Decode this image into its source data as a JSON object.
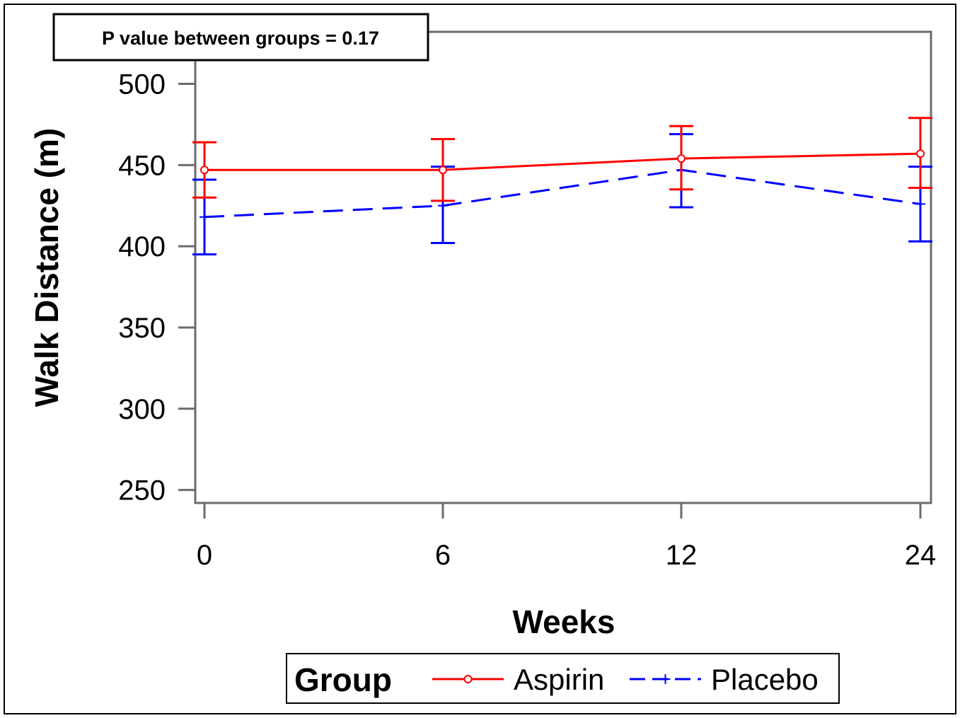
{
  "chart_data": {
    "type": "line",
    "x_type": "categorical",
    "categories": [
      "0",
      "6",
      "12",
      "24"
    ],
    "xlabel": "Weeks",
    "ylabel": "Walk Distance (m)",
    "ylim": [
      242,
      532
    ],
    "y_ticks": [
      "250",
      "300",
      "350",
      "400",
      "450",
      "500"
    ],
    "grid": false,
    "legend": {
      "title": "Group",
      "placement": "bottom-center"
    },
    "annotation": "P value between groups = 0.17",
    "series": [
      {
        "name": "Aspirin",
        "color": "#ff0000",
        "line_style": "solid",
        "marker": "circle",
        "values": [
          447,
          447,
          454,
          457
        ],
        "error_low": [
          430,
          428,
          435,
          436
        ],
        "error_high": [
          464,
          466,
          474,
          479
        ]
      },
      {
        "name": "Placebo",
        "color": "#0000ff",
        "line_style": "dashed",
        "marker": "plus",
        "values": [
          418,
          425,
          447,
          426
        ],
        "error_low": [
          395,
          402,
          424,
          403
        ],
        "error_high": [
          441,
          449,
          469,
          449
        ]
      }
    ]
  }
}
